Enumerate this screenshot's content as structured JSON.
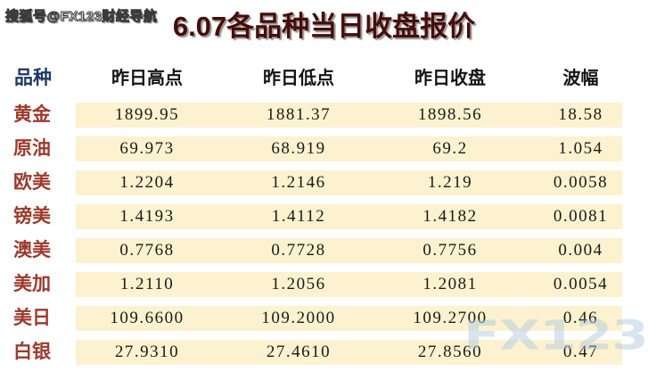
{
  "page": {
    "brand_watermark": "搜狐号@FX123财经导航",
    "corner_watermark": "FX123"
  },
  "chart_data": {
    "type": "table",
    "title": "6.07各品种当日收盘报价",
    "columns": [
      "品种",
      "昨日高点",
      "昨日低点",
      "昨日收盘",
      "波幅"
    ],
    "rows": [
      {
        "name": "黄金",
        "high": "1899.95",
        "low": "1881.37",
        "close": "1898.56",
        "range": "18.58"
      },
      {
        "name": "原油",
        "high": "69.973",
        "low": "68.919",
        "close": "69.2",
        "range": "1.054"
      },
      {
        "name": "欧美",
        "high": "1.2204",
        "low": "1.2146",
        "close": "1.219",
        "range": "0.0058"
      },
      {
        "name": "镑美",
        "high": "1.4193",
        "low": "1.4112",
        "close": "1.4182",
        "range": "0.0081"
      },
      {
        "name": "澳美",
        "high": "0.7768",
        "low": "0.7728",
        "close": "0.7756",
        "range": "0.004"
      },
      {
        "name": "美加",
        "high": "1.2110",
        "low": "1.2056",
        "close": "1.2081",
        "range": "0.0054"
      },
      {
        "name": "美日",
        "high": "109.6600",
        "low": "109.2000",
        "close": "109.2700",
        "range": "0.46"
      },
      {
        "name": "白银",
        "high": "27.9310",
        "low": "27.4610",
        "close": "27.8560",
        "range": "0.47"
      }
    ],
    "layout_hints": {
      "grid": false,
      "row_band_style": "alternating cream bands with white gaps"
    }
  },
  "colors": {
    "title_text": "#470d08",
    "product_header_text": "#1f3864",
    "column_header_text": "#141414",
    "row_label_text": "#9c3a2c",
    "row_band_background": "#fcf2cf",
    "number_text": "#1a1a1a",
    "corner_watermark_blue": "#a9c6e0",
    "page_background": "#ffffff"
  }
}
